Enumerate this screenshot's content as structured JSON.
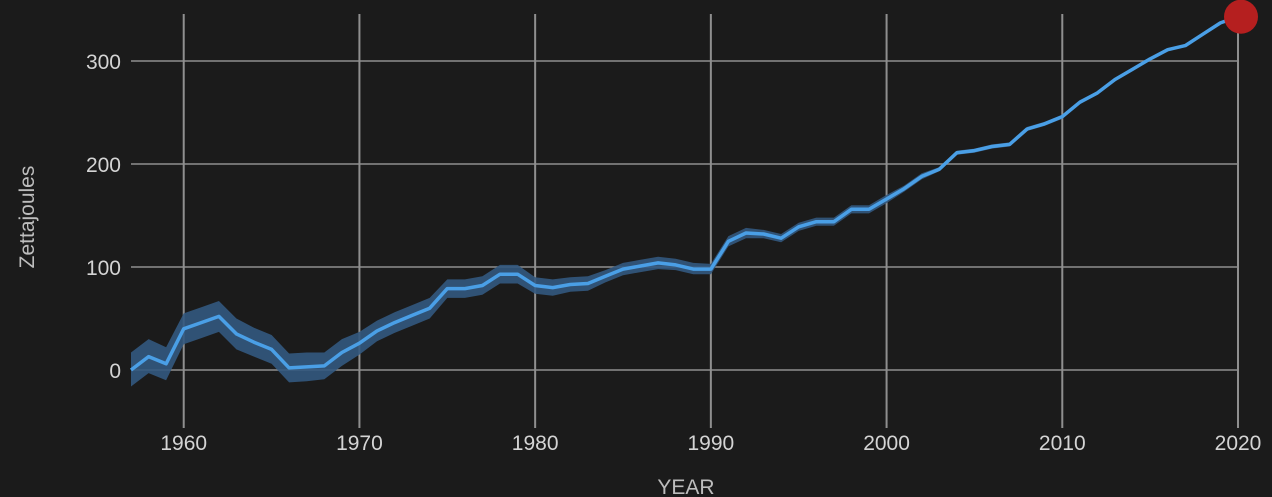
{
  "chart_data": {
    "type": "line",
    "xlabel": "YEAR",
    "ylabel": "Zettajoules",
    "xlim": [
      1957,
      2020
    ],
    "ylim": [
      -45,
      345
    ],
    "xticks": [
      1960,
      1970,
      1980,
      1990,
      2000,
      2010,
      2020
    ],
    "xtick_labels": [
      "1960",
      "1970",
      "1980",
      "1990",
      "2000",
      "2010",
      "2020"
    ],
    "yticks": [
      0,
      100,
      200,
      300
    ],
    "ytick_labels": [
      "0",
      "100",
      "200",
      "300"
    ],
    "grid": true,
    "colors": {
      "background": "#1b1b1b",
      "grid": "#8f8f8f",
      "line": "#4a9fe6",
      "band": "#33597f",
      "marker": "#b51f1f"
    },
    "series": [
      {
        "x": [
          1957,
          1958,
          1959,
          1960,
          1961,
          1962,
          1963,
          1964,
          1965,
          1966,
          1967,
          1968,
          1969,
          1970,
          1971,
          1972,
          1973,
          1974,
          1975,
          1976,
          1977,
          1978,
          1979,
          1980,
          1981,
          1982,
          1983,
          1984,
          1985,
          1986,
          1987,
          1988,
          1989,
          1990,
          1991,
          1992,
          1993,
          1994,
          1995,
          1996,
          1997,
          1998,
          1999,
          2000,
          2001,
          2002,
          2003,
          2004,
          2005,
          2006,
          2007,
          2008,
          2009,
          2010,
          2011,
          2012,
          2013,
          2014,
          2015,
          2016,
          2017,
          2018,
          2019,
          2020
        ],
        "y": [
          0,
          13,
          6,
          40,
          46,
          52,
          35,
          27,
          20,
          2,
          3,
          4,
          17,
          26,
          38,
          46,
          53,
          60,
          79,
          79,
          82,
          93,
          93,
          82,
          80,
          83,
          84,
          91,
          98,
          101,
          104,
          102,
          98,
          98,
          125,
          133,
          132,
          128,
          139,
          144,
          144,
          156,
          156,
          166,
          176,
          188,
          195,
          211,
          213,
          217,
          219,
          234,
          239,
          246,
          260,
          269,
          282,
          292,
          302,
          311,
          315,
          326,
          337,
          343
        ],
        "lower": [
          -16,
          -3,
          -10,
          25,
          31,
          37,
          20,
          13,
          6,
          -12,
          -11,
          -9,
          4,
          15,
          28,
          36,
          43,
          50,
          70,
          70,
          73,
          84,
          84,
          74,
          72,
          76,
          77,
          85,
          92,
          95,
          98,
          97,
          93,
          93,
          120,
          128,
          128,
          124,
          135,
          140,
          140,
          152,
          152,
          162,
          173,
          185,
          193,
          209,
          211,
          215,
          217,
          232,
          237,
          244,
          258,
          268,
          281,
          291,
          301,
          310,
          314,
          325,
          336,
          342
        ],
        "upper": [
          17,
          30,
          22,
          55,
          61,
          67,
          50,
          41,
          34,
          16,
          17,
          17,
          30,
          37,
          48,
          56,
          63,
          70,
          88,
          88,
          91,
          102,
          102,
          90,
          88,
          90,
          91,
          97,
          104,
          107,
          110,
          108,
          104,
          103,
          130,
          138,
          136,
          132,
          143,
          148,
          148,
          160,
          160,
          170,
          179,
          191,
          197,
          213,
          215,
          219,
          221,
          236,
          241,
          248,
          262,
          270,
          283,
          293,
          303,
          312,
          316,
          327,
          338,
          344
        ]
      }
    ],
    "marker": {
      "x": 2020,
      "y": 343
    }
  }
}
